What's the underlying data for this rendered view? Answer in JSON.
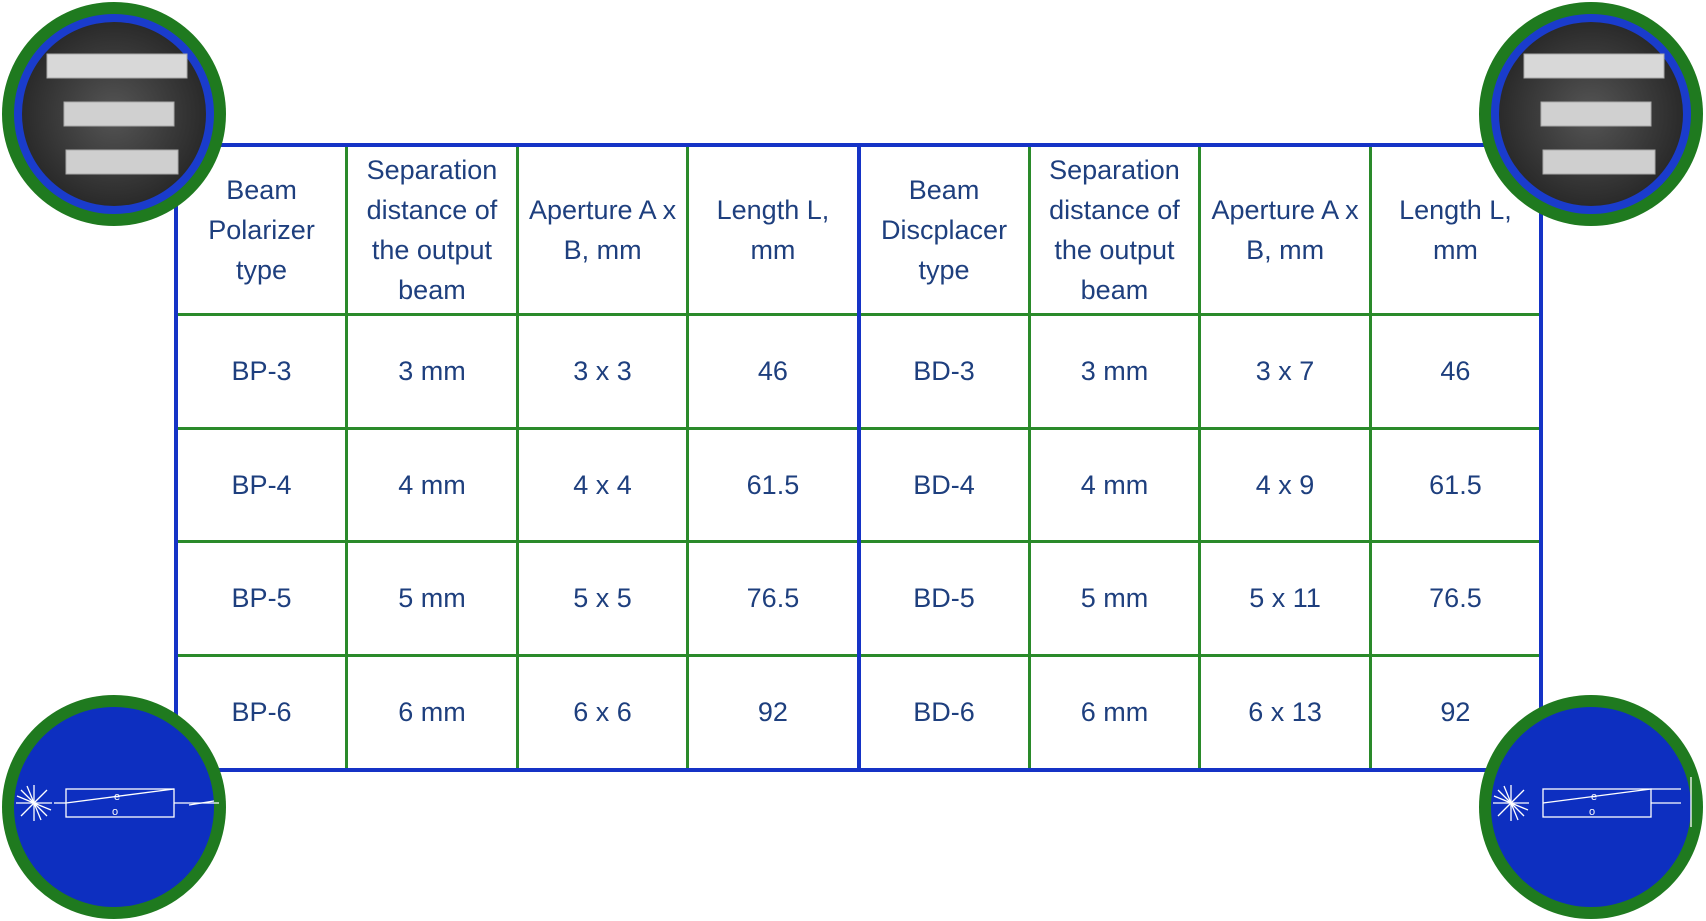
{
  "table": {
    "header": [
      "Beam Polarizer type",
      "Separation distance of the output beam",
      "Aperture A x B, mm",
      "Length L, mm",
      "Beam Discplacer type",
      "Separation distance of the output beam",
      "Aperture A x B, mm",
      "Length L, mm"
    ],
    "rows": [
      [
        "BP-3",
        "3 mm",
        "3 x 3",
        "46",
        "BD-3",
        "3 mm",
        "3 x 7",
        "46"
      ],
      [
        "BP-4",
        "4 mm",
        "4 x 4",
        "61.5",
        "BD-4",
        "4 mm",
        "4 x 9",
        "61.5"
      ],
      [
        "BP-5",
        "5 mm",
        "5 x 5",
        "76.5",
        "BD-5",
        "5 mm",
        "5 x 11",
        "76.5"
      ],
      [
        "BP-6",
        "6 mm",
        "6 x 6",
        "92",
        "BD-6",
        "6 mm",
        "6 x 13",
        "92"
      ]
    ]
  },
  "diagram": {
    "labels": [
      "e",
      "o"
    ]
  }
}
